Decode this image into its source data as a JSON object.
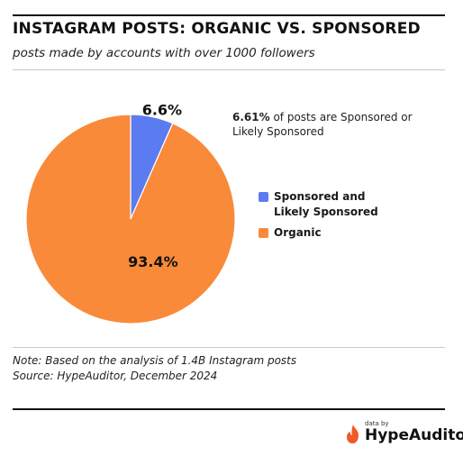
{
  "header": {
    "title": "INSTAGRAM POSTS: ORGANIC VS. SPONSORED",
    "subtitle": "posts made by accounts with over 1000 followers"
  },
  "callout": {
    "value": "6.61%",
    "text": " of posts are Sponsored or Likely Sponsored"
  },
  "footer": {
    "note": "Note: Based on the analysis of 1.4B Instagram posts",
    "source": "Source: HypeAuditor, December 2024",
    "brand_prefix": "data by",
    "brand_name": "HypeAuditor"
  },
  "colors": {
    "sponsored": "#5b7cf0",
    "organic": "#f98a3a",
    "brand_flame": "#f05a28"
  },
  "chart_data": {
    "type": "pie",
    "title": "INSTAGRAM POSTS: ORGANIC VS. SPONSORED",
    "slices": [
      {
        "name": "Sponsored and Likely Sponsored",
        "value": 6.6,
        "label": "6.6%",
        "color": "#5b7cf0"
      },
      {
        "name": "Organic",
        "value": 93.4,
        "label": "93.4%",
        "color": "#f98a3a"
      }
    ],
    "legend": "right"
  }
}
